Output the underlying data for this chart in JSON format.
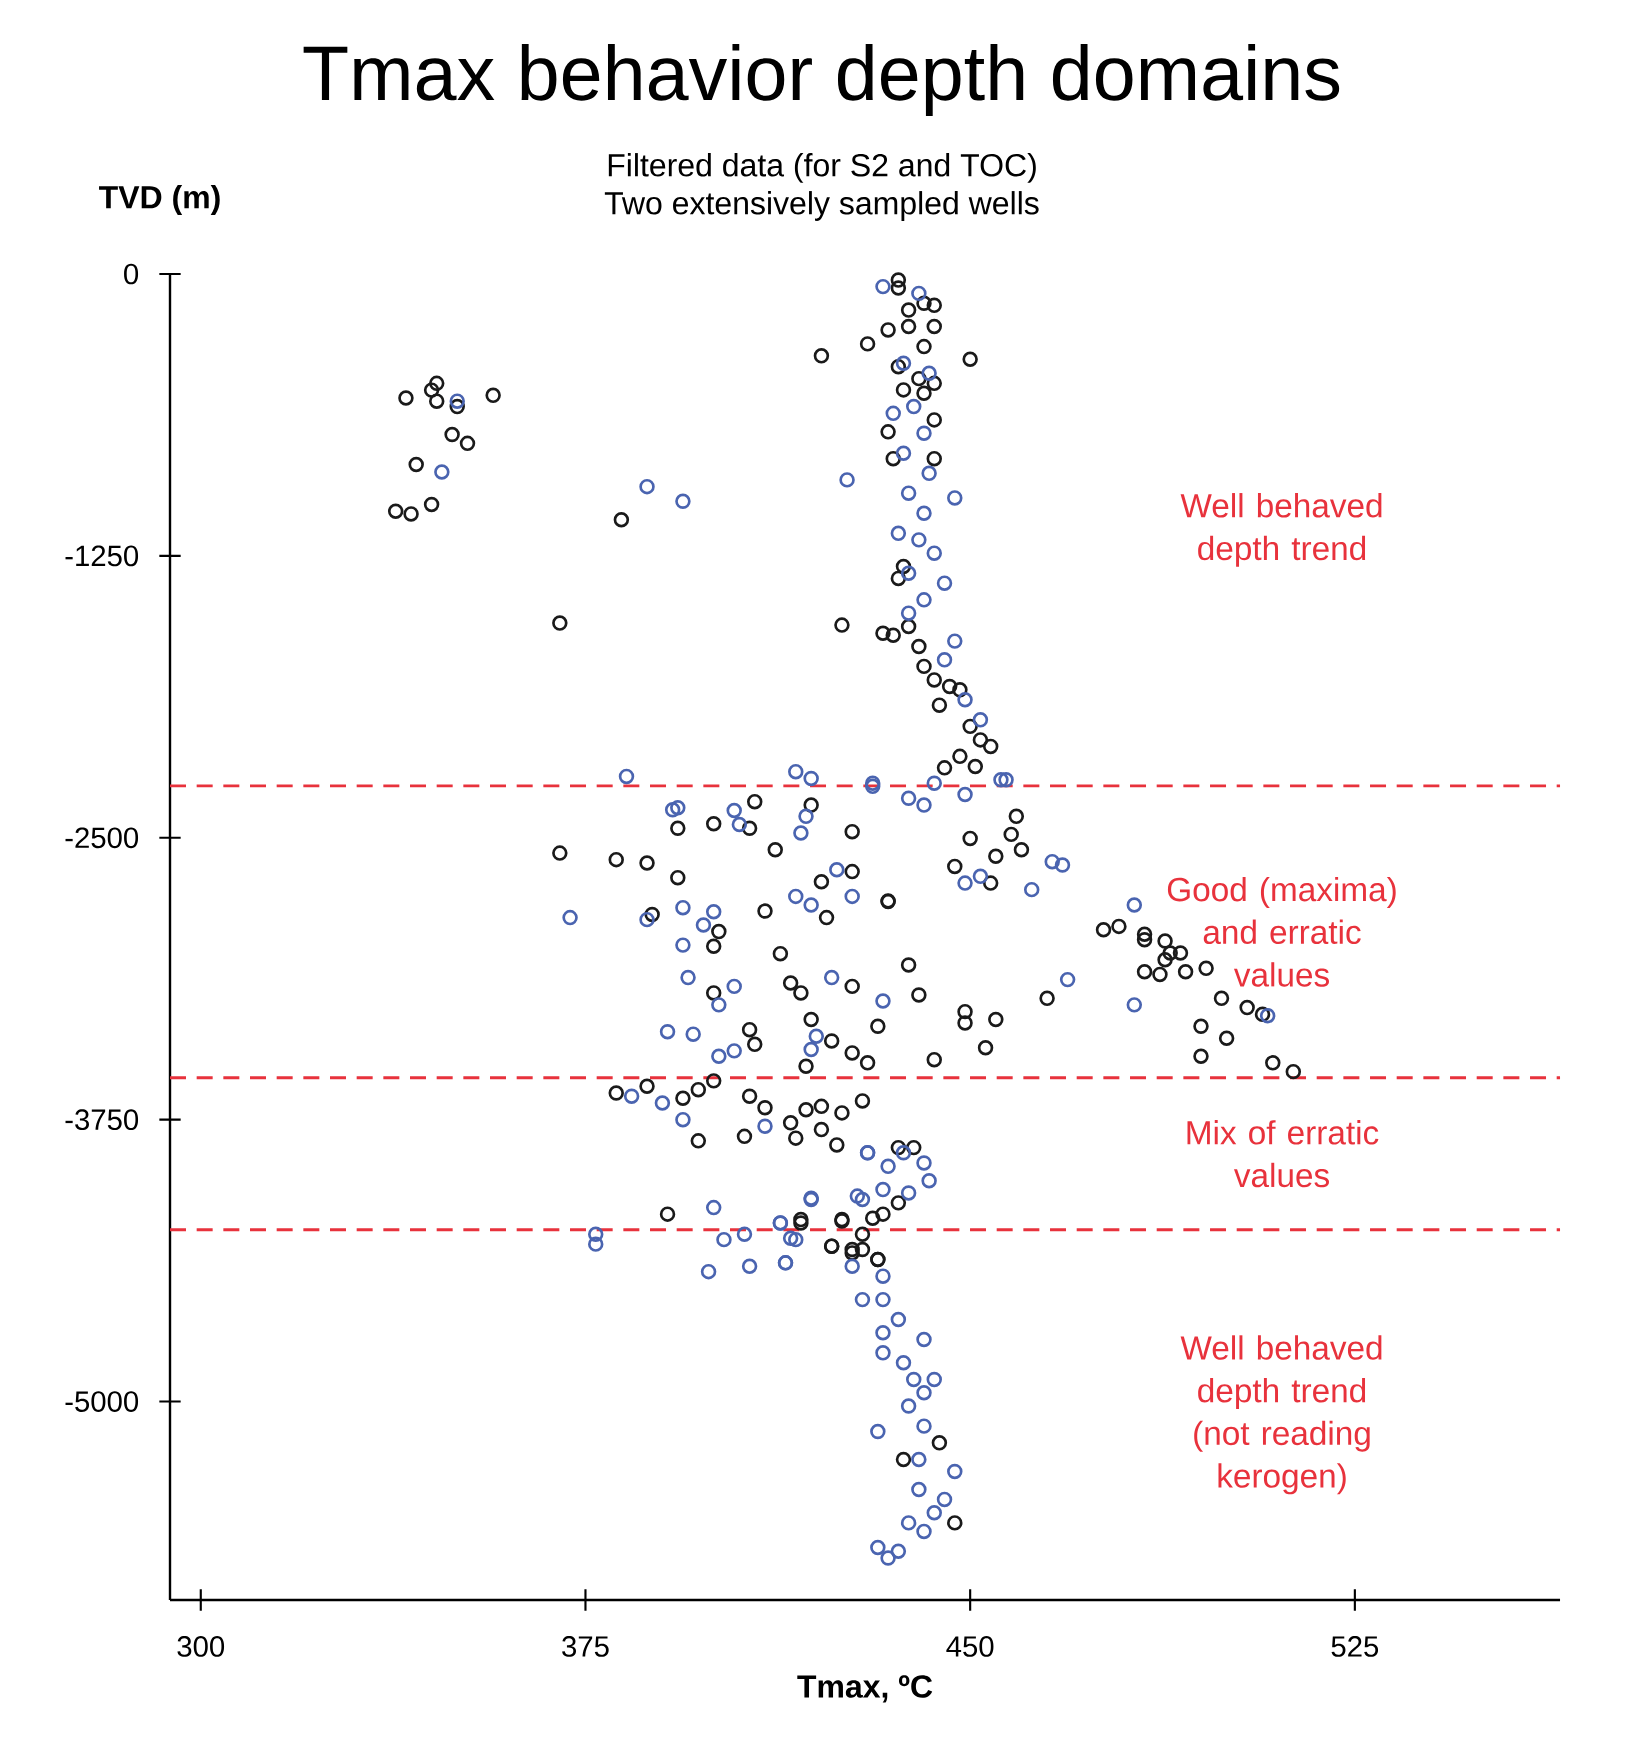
{
  "chart_data": {
    "type": "scatter",
    "title": "Tmax behavior depth domains",
    "subtitle": "Filtered data (for S2 and TOC)",
    "xlabel": "Tmax, ºC",
    "ylabel": "TVD (m)",
    "xlim": [
      294,
      565
    ],
    "ylim": [
      -5880,
      0
    ],
    "xticks": [
      300,
      375,
      450,
      525
    ],
    "yticks": [
      0,
      -1250,
      -2500,
      -3750,
      -5000
    ],
    "marker": "circle",
    "grid": false,
    "ref_lines": [
      {
        "axis": "y",
        "value": -2270,
        "color": "#e8323c",
        "line_style": "dashed"
      },
      {
        "axis": "y",
        "value": -3564,
        "color": "#e8323c",
        "line_style": "dashed"
      },
      {
        "axis": "y",
        "value": -4238,
        "color": "#e8323c",
        "line_style": "dashed"
      }
    ],
    "annotations": [
      "Two extensively sampled wells",
      "Well behaved depth trend",
      "Good (maxima) and erratic values",
      "Mix of erratic values",
      "Well behaved depth trend (not reading kerogen)"
    ],
    "series": [
      {
        "color": "#1a1a1a",
        "x": [
          340,
          345,
          346,
          346,
          350,
          357,
          349,
          352,
          342,
          345,
          338,
          341,
          382,
          370,
          421,
          430,
          450,
          425,
          436,
          436,
          438,
          441,
          443,
          434,
          438,
          443,
          441,
          436,
          440,
          443,
          437,
          441,
          443,
          434,
          435,
          443,
          437,
          436,
          433,
          435,
          438,
          440,
          441,
          443,
          446,
          448,
          444,
          450,
          452,
          448,
          451,
          454,
          445,
          408,
          419,
          393,
          400,
          407,
          427,
          370,
          381,
          387,
          393,
          412,
          421,
          427,
          434,
          388,
          410,
          422,
          401,
          400,
          413,
          415,
          427,
          400,
          417,
          419,
          407,
          408,
          423,
          432,
          427,
          418,
          430,
          400,
          397,
          394,
          387,
          381,
          407,
          410,
          418,
          421,
          429,
          415,
          421,
          406,
          397,
          416,
          424,
          425,
          391,
          417,
          425,
          431,
          423,
          427,
          432,
          429,
          459,
          450,
          458,
          460,
          455,
          454,
          447,
          476,
          479,
          484,
          484,
          488,
          489,
          488,
          491,
          484,
          487,
          492,
          496,
          499,
          504,
          507,
          495,
          500,
          495,
          509,
          513,
          465,
          438,
          440,
          449,
          455,
          449,
          453,
          443,
          434,
          436,
          439,
          436,
          433,
          417,
          425,
          423,
          427,
          429,
          432,
          444,
          437,
          447
        ],
        "values": [
          -550,
          -515,
          -485,
          -564,
          -588,
          -538,
          -712,
          -751,
          -845,
          -1022,
          -1052,
          -1064,
          -1090,
          -1548,
          -363,
          -310,
          -378,
          -1557,
          -27,
          -62,
          -160,
          -130,
          -139,
          -248,
          -233,
          -233,
          -322,
          -411,
          -464,
          -485,
          -514,
          -529,
          -647,
          -700,
          -819,
          -819,
          -1297,
          -1350,
          -1593,
          -1602,
          -1563,
          -1652,
          -1740,
          -1800,
          -1829,
          -1844,
          -1912,
          -2006,
          -2066,
          -2139,
          -2184,
          -2095,
          -2190,
          -2340,
          -2355,
          -2458,
          -2438,
          -2458,
          -2473,
          -2568,
          -2597,
          -2612,
          -2677,
          -2553,
          -2695,
          -2650,
          -2783,
          -2840,
          -2825,
          -2854,
          -2916,
          -2981,
          -3014,
          -3144,
          -3159,
          -3188,
          -3188,
          -3306,
          -3351,
          -3416,
          -3401,
          -3336,
          -3454,
          -3513,
          -3498,
          -3578,
          -3617,
          -3655,
          -3602,
          -3632,
          -3646,
          -3697,
          -3706,
          -3691,
          -3667,
          -3764,
          -3794,
          -3824,
          -3844,
          -3832,
          -3862,
          -3720,
          -4169,
          -4193,
          -4193,
          -4187,
          -4311,
          -4341,
          -4370,
          -4258,
          -2405,
          -2503,
          -2485,
          -2553,
          -2582,
          -2701,
          -2627,
          -2908,
          -2893,
          -2928,
          -2952,
          -2958,
          -3011,
          -3041,
          -3011,
          -3094,
          -3106,
          -3094,
          -3079,
          -3212,
          -3253,
          -3283,
          -3336,
          -3389,
          -3469,
          -3498,
          -3537,
          -3212,
          -3064,
          -3197,
          -3271,
          -3306,
          -3321,
          -3431,
          -3484,
          -2780,
          -3874,
          -3874,
          -4119,
          -4169,
          -4208,
          -4199,
          -4311,
          -4326,
          -4326,
          -4370,
          -5183,
          -5257,
          -5538
        ]
      },
      {
        "color": "#4a64b0",
        "x": [
          350,
          347,
          387,
          394,
          426,
          447,
          433,
          440,
          437,
          442,
          435,
          439,
          441,
          437,
          442,
          438,
          441,
          436,
          440,
          443,
          438,
          445,
          441,
          438,
          447,
          445,
          449,
          452,
          457,
          383,
          416,
          419,
          431,
          443,
          392,
          393,
          404,
          405,
          417,
          418,
          424,
          416,
          419,
          427,
          372,
          387,
          394,
          400,
          398,
          394,
          395,
          404,
          401,
          423,
          433,
          391,
          396,
          401,
          404,
          420,
          419,
          384,
          390,
          394,
          410,
          430,
          419,
          428,
          400,
          413,
          415,
          377,
          377,
          402,
          406,
          399,
          407,
          414,
          482,
          469,
          482,
          508,
          466,
          468,
          462,
          449,
          452,
          456,
          449,
          441,
          431,
          438,
          430,
          434,
          437,
          441,
          442,
          433,
          438,
          429,
          419,
          413,
          416,
          414,
          427,
          433,
          429,
          433,
          436,
          433,
          441,
          433,
          437,
          439,
          443,
          438,
          441,
          432,
          441,
          447,
          440,
          440,
          445,
          438,
          441,
          432,
          434,
          436,
          443
        ],
        "values": [
          -564,
          -878,
          -943,
          -1008,
          -913,
          -993,
          -56,
          -86,
          -396,
          -440,
          -618,
          -588,
          -706,
          -795,
          -884,
          -972,
          -1061,
          -1150,
          -1179,
          -1238,
          -1327,
          -1371,
          -1445,
          -1504,
          -1628,
          -1711,
          -1888,
          -1977,
          -2243,
          -2228,
          -2207,
          -2237,
          -2258,
          -2258,
          -2376,
          -2367,
          -2379,
          -2441,
          -2479,
          -2405,
          -2642,
          -2760,
          -2798,
          -2760,
          -2854,
          -2863,
          -2810,
          -2828,
          -2887,
          -2976,
          -3120,
          -3159,
          -3241,
          -3120,
          -3224,
          -3360,
          -3371,
          -3469,
          -3445,
          -3380,
          -3439,
          -3646,
          -3676,
          -3750,
          -3779,
          -3897,
          -4098,
          -4089,
          -4140,
          -4208,
          -4276,
          -4258,
          -4302,
          -4282,
          -4258,
          -4424,
          -4400,
          -4385,
          -2798,
          -3129,
          -3241,
          -3289,
          -2606,
          -2621,
          -2730,
          -2701,
          -2671,
          -2243,
          -2308,
          -2355,
          -2272,
          -2325,
          -3897,
          -3957,
          -3897,
          -3942,
          -4021,
          -4060,
          -4075,
          -4104,
          -4104,
          -4208,
          -4282,
          -4385,
          -4400,
          -4444,
          -4548,
          -4548,
          -4636,
          -4695,
          -4725,
          -4784,
          -4828,
          -4902,
          -4902,
          -5020,
          -4961,
          -5133,
          -5109,
          -5310,
          -5257,
          -5390,
          -5434,
          -5538,
          -5576,
          -5647,
          -5694,
          -5664,
          -5493
        ]
      }
    ]
  }
}
